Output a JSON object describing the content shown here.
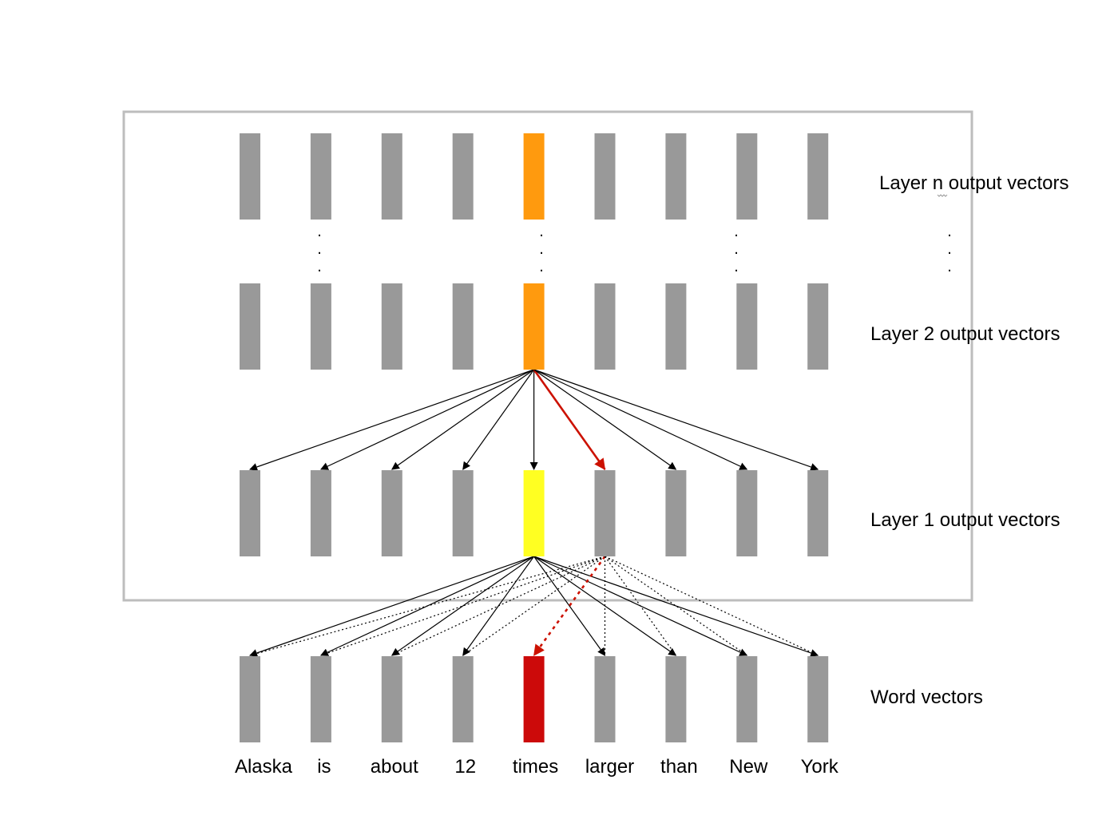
{
  "colors": {
    "vector": "#999999",
    "layer_n_highlight": "#FF9A0E",
    "layer_2_highlight": "#FF9A0E",
    "layer_1_highlight": "#FFFF22",
    "word_highlight": "#CC0A0A",
    "attention_highlight": "#CC1100",
    "box_border": "#BDBDBD"
  },
  "labels": {
    "layer_n": "Layer n output vectors",
    "layer_2": "Layer 2 output vectors",
    "layer_1": "Layer 1 output vectors",
    "word": "Word vectors"
  },
  "words": [
    "Alaska",
    "is",
    "about",
    "12",
    "times",
    "larger",
    "than",
    "New",
    "York"
  ],
  "highlighted_index": 4,
  "highlighted_attention_target": 5,
  "ellipsis": "."
}
